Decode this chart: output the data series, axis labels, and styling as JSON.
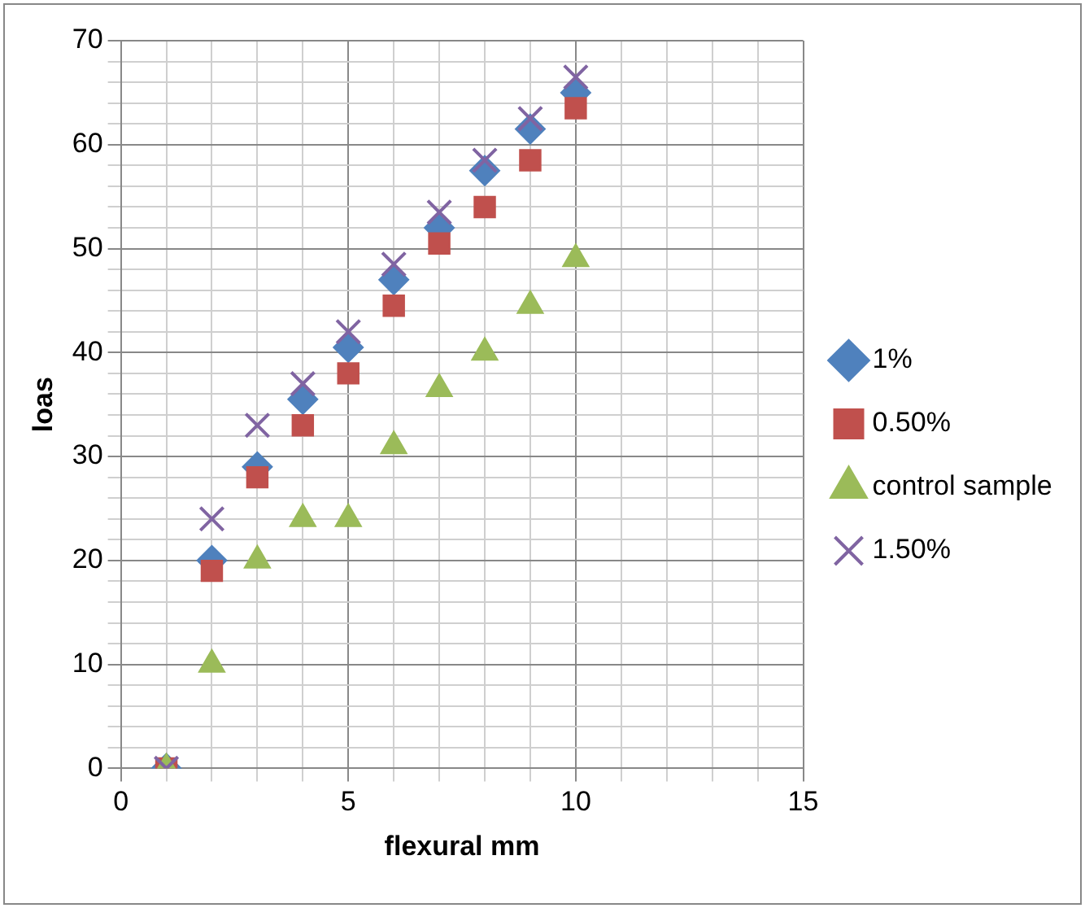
{
  "chart_data": {
    "type": "scatter",
    "xlabel": "flexural mm",
    "ylabel": "loas",
    "xlim": [
      0,
      15
    ],
    "ylim": [
      0,
      70
    ],
    "xticks": [
      0,
      {
        "value": 1,
        "label": null
      },
      {
        "value": 2,
        "label": null
      },
      {
        "value": 3,
        "label": null
      },
      {
        "value": 4,
        "label": null
      },
      5,
      {
        "value": 6,
        "label": null
      },
      {
        "value": 7,
        "label": null
      },
      {
        "value": 8,
        "label": null
      },
      {
        "value": 9,
        "label": null
      },
      10,
      {
        "value": 11,
        "label": null
      },
      {
        "value": 12,
        "label": null
      },
      {
        "value": 13,
        "label": null
      },
      {
        "value": 14,
        "label": null
      },
      15
    ],
    "yticks": [
      0,
      {
        "value": 2,
        "label": null
      },
      {
        "value": 4,
        "label": null
      },
      {
        "value": 6,
        "label": null
      },
      {
        "value": 8,
        "label": null
      },
      10,
      {
        "value": 12,
        "label": null
      },
      {
        "value": 14,
        "label": null
      },
      {
        "value": 16,
        "label": null
      },
      {
        "value": 18,
        "label": null
      },
      20,
      {
        "value": 22,
        "label": null
      },
      {
        "value": 24,
        "label": null
      },
      {
        "value": 26,
        "label": null
      },
      {
        "value": 28,
        "label": null
      },
      30,
      {
        "value": 32,
        "label": null
      },
      {
        "value": 34,
        "label": null
      },
      {
        "value": 36,
        "label": null
      },
      {
        "value": 38,
        "label": null
      },
      40,
      {
        "value": 42,
        "label": null
      },
      {
        "value": 44,
        "label": null
      },
      {
        "value": 46,
        "label": null
      },
      {
        "value": 48,
        "label": null
      },
      50,
      {
        "value": 52,
        "label": null
      },
      {
        "value": 54,
        "label": null
      },
      {
        "value": 56,
        "label": null
      },
      {
        "value": 58,
        "label": null
      },
      60,
      {
        "value": 62,
        "label": null
      },
      {
        "value": 64,
        "label": null
      },
      {
        "value": 66,
        "label": null
      },
      {
        "value": 68,
        "label": null
      },
      70
    ],
    "grid": true,
    "legend": "right",
    "x": [
      1,
      2,
      3,
      4,
      5,
      6,
      7,
      8,
      9,
      10
    ],
    "series": [
      {
        "name": "1%",
        "color": "#4f81bd",
        "marker": "diamond",
        "values": [
          0,
          20,
          29,
          35.5,
          40.5,
          47,
          52,
          57.5,
          61.5,
          65
        ]
      },
      {
        "name": "0.50%",
        "color": "#c0504d",
        "marker": "square",
        "values": [
          0,
          19,
          28,
          33,
          38,
          44.5,
          50.5,
          54,
          58.5,
          63.5
        ]
      },
      {
        "name": "control sample",
        "color": "#9bbb59",
        "marker": "triangle",
        "values": [
          0,
          10,
          20,
          24,
          24,
          31,
          36.5,
          40,
          44.5,
          49
        ]
      },
      {
        "name": "1.50%",
        "color": "#8064a2",
        "marker": "cross",
        "values": [
          0,
          24,
          33,
          37,
          42,
          48.5,
          53.5,
          58.5,
          62.5,
          66.5
        ]
      }
    ]
  }
}
